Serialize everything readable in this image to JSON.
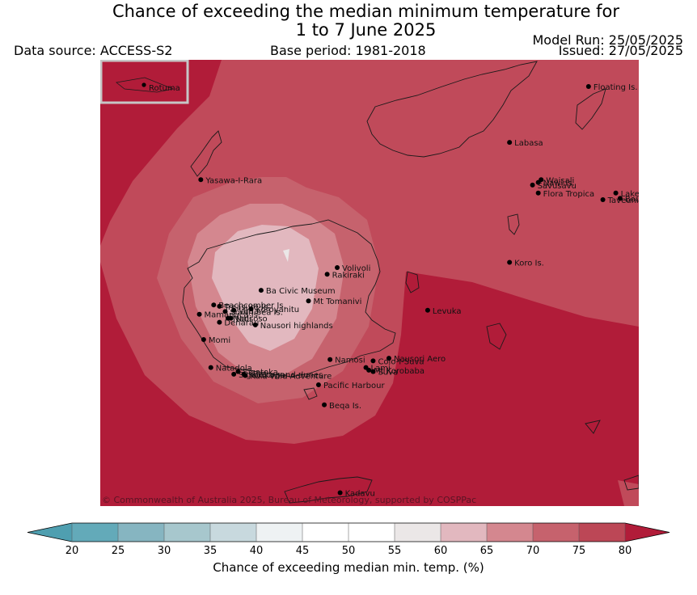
{
  "title": {
    "line1": "Chance of exceeding the median minimum temperature for",
    "line2": "1 to 7 June 2025"
  },
  "header": {
    "data_source": "Data source: ACCESS-S2",
    "base_period": "Base period: 1981-2018",
    "model_run": "Model Run: 25/05/2025",
    "issued": "Issued: 27/05/2025"
  },
  "map": {
    "inset_label": "Rotuma",
    "copyright": "© Commonwealth of Australia 2025, Bureau of Meteorology, supported by COSPPac",
    "places": [
      {
        "name": "Floating Is.",
        "lon": 179.95,
        "lat": -16.0
      },
      {
        "name": "Labasa",
        "lon": 179.4,
        "lat": -16.42
      },
      {
        "name": "Yasawa-I-Rara",
        "lon": 177.25,
        "lat": -16.7
      },
      {
        "name": "Nawi Is.",
        "lon": 179.6,
        "lat": -16.72
      },
      {
        "name": "Savusavu",
        "lon": 179.56,
        "lat": -16.74
      },
      {
        "name": "Waisali",
        "lon": 179.62,
        "lat": -16.7
      },
      {
        "name": "Flora Tropica",
        "lon": 179.6,
        "lat": -16.8
      },
      {
        "name": "Lake Tagimaucia",
        "lon": 180.14,
        "lat": -16.8
      },
      {
        "name": "Taveuni",
        "lon": 180.05,
        "lat": -16.85
      },
      {
        "name": "Bouma",
        "lon": 180.17,
        "lat": -16.84
      },
      {
        "name": "Koro Is.",
        "lon": 179.4,
        "lat": -17.32
      },
      {
        "name": "Volivoli",
        "lon": 178.2,
        "lat": -17.36
      },
      {
        "name": "Rakiraki",
        "lon": 178.13,
        "lat": -17.41
      },
      {
        "name": "Ba Civic Museum",
        "lon": 177.67,
        "lat": -17.53
      },
      {
        "name": "Mt Tomanivi",
        "lon": 178.0,
        "lat": -17.61
      },
      {
        "name": "Beachcomber Is.",
        "lon": 177.34,
        "lat": -17.64
      },
      {
        "name": "Treasure Is.",
        "lon": 177.38,
        "lat": -17.65
      },
      {
        "name": "Vuda",
        "lon": 177.48,
        "lat": -17.68
      },
      {
        "name": "Koroyanitu",
        "lon": 177.6,
        "lat": -17.67
      },
      {
        "name": "Levuka",
        "lon": 178.83,
        "lat": -17.68
      },
      {
        "name": "South Sea Is.",
        "lon": 177.42,
        "lat": -17.69
      },
      {
        "name": "Mamanuca Is.",
        "lon": 177.24,
        "lat": -17.71
      },
      {
        "name": "Nadi",
        "lon": 177.44,
        "lat": -17.74
      },
      {
        "name": "Naisoso",
        "lon": 177.46,
        "lat": -17.74
      },
      {
        "name": "Denarau",
        "lon": 177.38,
        "lat": -17.77
      },
      {
        "name": "Nausori highlands",
        "lon": 177.63,
        "lat": -17.79
      },
      {
        "name": "Momi",
        "lon": 177.27,
        "lat": -17.9
      },
      {
        "name": "Namosi",
        "lon": 178.15,
        "lat": -18.05
      },
      {
        "name": "Colo-I-Suva",
        "lon": 178.45,
        "lat": -18.06
      },
      {
        "name": "Nausori Aero",
        "lon": 178.56,
        "lat": -18.04
      },
      {
        "name": "Lami",
        "lon": 178.4,
        "lat": -18.11
      },
      {
        "name": "Natadola",
        "lon": 177.32,
        "lat": -18.11
      },
      {
        "name": "Sigatoka",
        "lon": 177.51,
        "lat": -18.14
      },
      {
        "name": "Mt Korobaba",
        "lon": 178.42,
        "lat": -18.13
      },
      {
        "name": "Korotogo",
        "lon": 177.55,
        "lat": -18.16
      },
      {
        "name": "Suva",
        "lon": 178.45,
        "lat": -18.14
      },
      {
        "name": "Sigatoka sand dunes",
        "lon": 177.48,
        "lat": -18.16
      },
      {
        "name": "Kula Wild Adventure",
        "lon": 177.56,
        "lat": -18.17
      },
      {
        "name": "Pacific Harbour",
        "lon": 178.07,
        "lat": -18.24
      },
      {
        "name": "Beqa Is.",
        "lon": 178.11,
        "lat": -18.39
      },
      {
        "name": "Kadavu",
        "lon": 178.22,
        "lat": -19.05
      }
    ]
  },
  "chart_data": {
    "type": "heatmap",
    "colorbar": {
      "label": "Chance of exceeding median min. temp. (%)",
      "ticks": [
        "20",
        "25",
        "30",
        "35",
        "40",
        "45",
        "50",
        "55",
        "60",
        "65",
        "70",
        "75",
        "80"
      ],
      "levels": [
        20,
        25,
        30,
        35,
        40,
        45,
        50,
        55,
        60,
        65,
        70,
        75,
        80
      ],
      "colors": [
        "#63aab9",
        "#86b5c1",
        "#a7c7cd",
        "#c8d9de",
        "#eef2f3",
        "#ffffff",
        "#ffffff",
        "#ebe7e7",
        "#e2b8bf",
        "#d4878f",
        "#c6626d",
        "#bc4756"
      ],
      "extend_low_color": "#4f9fb0",
      "extend_high_color": "#b11c39"
    },
    "field": [
      {
        "range": "75-80",
        "color": "#c04a5a"
      },
      {
        "range": ">80",
        "color": "#b11c39"
      },
      {
        "range": "70-75",
        "color": "#c6626d"
      },
      {
        "range": "65-70",
        "color": "#d4878f"
      },
      {
        "range": "60-65",
        "color": "#e2b8bf"
      },
      {
        "range": "55-60",
        "color": "#ebe7e7"
      }
    ]
  }
}
